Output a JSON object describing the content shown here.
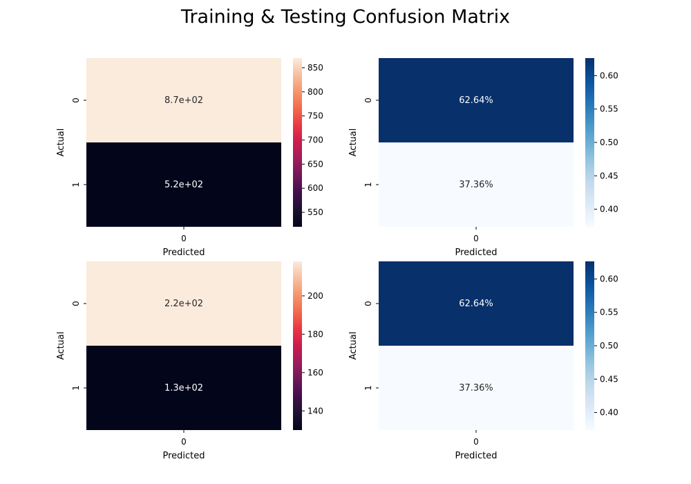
{
  "figure": {
    "title": "Training & Testing Confusion Matrix"
  },
  "chart_data": [
    {
      "type": "heatmap",
      "xlabel": "Predicted",
      "ylabel": "Actual",
      "x_categories": [
        "0"
      ],
      "y_categories": [
        "0",
        "1"
      ],
      "values": [
        870,
        520
      ],
      "cell_labels": [
        "8.7e+02",
        "5.2e+02"
      ],
      "colormap": "rocket",
      "colorbar_range": [
        520,
        870
      ],
      "colorbar_ticks": [
        550,
        600,
        650,
        700,
        750,
        800,
        850
      ],
      "grid": false
    },
    {
      "type": "heatmap",
      "xlabel": "Predicted",
      "ylabel": "Actual",
      "x_categories": [
        "0"
      ],
      "y_categories": [
        "0",
        "1"
      ],
      "values": [
        0.6264,
        0.3736
      ],
      "cell_labels": [
        "62.64%",
        "37.36%"
      ],
      "colormap": "Blues",
      "colorbar_range": [
        0.3736,
        0.6264
      ],
      "colorbar_ticks": [
        "0.40",
        "0.45",
        "0.50",
        "0.55",
        "0.60"
      ],
      "grid": false
    },
    {
      "type": "heatmap",
      "xlabel": "Predicted",
      "ylabel": "Actual",
      "x_categories": [
        "0"
      ],
      "y_categories": [
        "0",
        "1"
      ],
      "values": [
        218,
        130
      ],
      "cell_labels": [
        "2.2e+02",
        "1.3e+02"
      ],
      "colormap": "rocket",
      "colorbar_range": [
        130,
        218
      ],
      "colorbar_ticks": [
        140,
        160,
        180,
        200
      ],
      "grid": false
    },
    {
      "type": "heatmap",
      "xlabel": "Predicted",
      "ylabel": "Actual",
      "x_categories": [
        "0"
      ],
      "y_categories": [
        "0",
        "1"
      ],
      "values": [
        0.6264,
        0.3736
      ],
      "cell_labels": [
        "62.64%",
        "37.36%"
      ],
      "colormap": "Blues",
      "colorbar_range": [
        0.3736,
        0.6264
      ],
      "colorbar_ticks": [
        "0.40",
        "0.45",
        "0.50",
        "0.55",
        "0.60"
      ],
      "grid": false
    }
  ]
}
